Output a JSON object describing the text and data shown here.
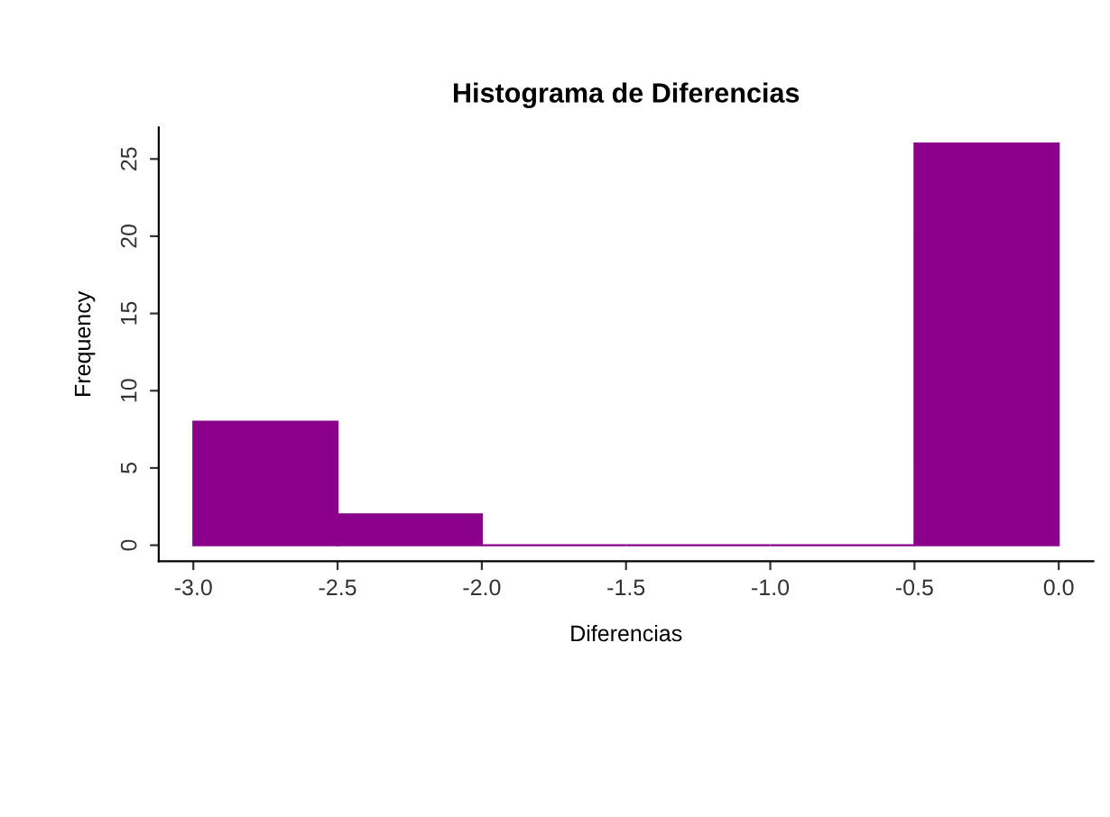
{
  "chart_data": {
    "type": "histogram",
    "title": "Histograma de Diferencias",
    "xlabel": "Diferencias",
    "ylabel": "Frequency",
    "bins": [
      -3.0,
      -2.5,
      -2.0,
      -1.5,
      -1.0,
      -0.5,
      0.0
    ],
    "values": [
      8,
      2,
      0,
      0,
      0,
      26
    ],
    "color": "#8b008b",
    "xlim": [
      -3.12,
      0.12
    ],
    "ylim": [
      -1.04,
      27.04
    ],
    "xticks": [
      {
        "value": -3,
        "label": "-3.0"
      },
      {
        "value": -2.5,
        "label": "-2.5"
      },
      {
        "value": -2,
        "label": "-2.0"
      },
      {
        "value": -1.5,
        "label": "-1.5"
      },
      {
        "value": -1,
        "label": "-1.0"
      },
      {
        "value": -0.5,
        "label": "-0.5"
      },
      {
        "value": 0,
        "label": "0.0"
      }
    ],
    "yticks": [
      0,
      5,
      10,
      15,
      20,
      25
    ],
    "grid": false
  }
}
